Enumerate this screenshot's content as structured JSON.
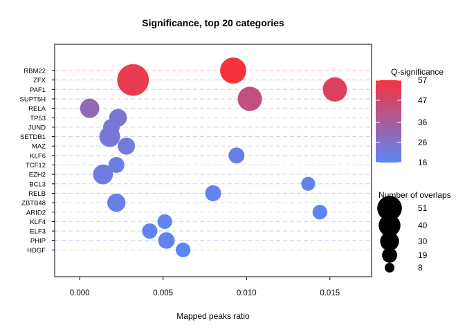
{
  "chart_data": {
    "type": "scatter",
    "title": "Significance, top 20 categories",
    "xlabel": "Mapped peaks ratio",
    "ylabel": "",
    "xlim": [
      -0.0015,
      0.0175
    ],
    "xticks": [
      0.0,
      0.005,
      0.01,
      0.015
    ],
    "xtick_labels": [
      "0.000",
      "0.005",
      "0.010",
      "0.015"
    ],
    "grid": "dashed horizontal lines at each category",
    "categories": [
      "RBM22",
      "ZFX",
      "PAF1",
      "SUPT5H",
      "RELA",
      "TP53",
      "JUND",
      "SETDB1",
      "MAZ",
      "KLF6",
      "TCF12",
      "EZH2",
      "BCL3",
      "RELB",
      "ZBTB48",
      "ARID2",
      "KLF4",
      "ELF3",
      "PHIP",
      "HDGF"
    ],
    "points": [
      {
        "category": "RBM22",
        "x": 0.0092,
        "q": 57,
        "overlaps": 35
      },
      {
        "category": "ZFX",
        "x": 0.0032,
        "q": 53,
        "overlaps": 51
      },
      {
        "category": "PAF1",
        "x": 0.0153,
        "q": 50,
        "overlaps": 30
      },
      {
        "category": "SUPT5H",
        "x": 0.0102,
        "q": 43,
        "overlaps": 30
      },
      {
        "category": "RELA",
        "x": 0.0006,
        "q": 30,
        "overlaps": 19
      },
      {
        "category": "TP53",
        "x": 0.0023,
        "q": 24,
        "overlaps": 16
      },
      {
        "category": "JUND",
        "x": 0.0019,
        "q": 23,
        "overlaps": 14
      },
      {
        "category": "SETDB1",
        "x": 0.0018,
        "q": 23,
        "overlaps": 22
      },
      {
        "category": "MAZ",
        "x": 0.0028,
        "q": 22,
        "overlaps": 15
      },
      {
        "category": "KLF6",
        "x": 0.0094,
        "q": 20,
        "overlaps": 13
      },
      {
        "category": "TCF12",
        "x": 0.0022,
        "q": 20,
        "overlaps": 13
      },
      {
        "category": "EZH2",
        "x": 0.0014,
        "q": 21,
        "overlaps": 20
      },
      {
        "category": "BCL3",
        "x": 0.0137,
        "q": 18,
        "overlaps": 10
      },
      {
        "category": "RELB",
        "x": 0.008,
        "q": 18,
        "overlaps": 13
      },
      {
        "category": "ZBTB48",
        "x": 0.0022,
        "q": 19,
        "overlaps": 17
      },
      {
        "category": "ARID2",
        "x": 0.0144,
        "q": 17,
        "overlaps": 11
      },
      {
        "category": "KLF4",
        "x": 0.0051,
        "q": 17,
        "overlaps": 11
      },
      {
        "category": "ELF3",
        "x": 0.0042,
        "q": 17,
        "overlaps": 12
      },
      {
        "category": "PHIP",
        "x": 0.0052,
        "q": 17,
        "overlaps": 14
      },
      {
        "category": "HDGF",
        "x": 0.0062,
        "q": 16,
        "overlaps": 11
      }
    ],
    "color_legend": {
      "title": "Q-significance",
      "min": 16,
      "max": 57,
      "ticks": [
        57,
        47,
        36,
        26,
        16
      ],
      "color_low": "#5b86f5",
      "color_high": "#f5333f"
    },
    "size_legend": {
      "title": "Number of overlaps",
      "values": [
        51,
        40,
        30,
        19,
        8
      ]
    }
  }
}
